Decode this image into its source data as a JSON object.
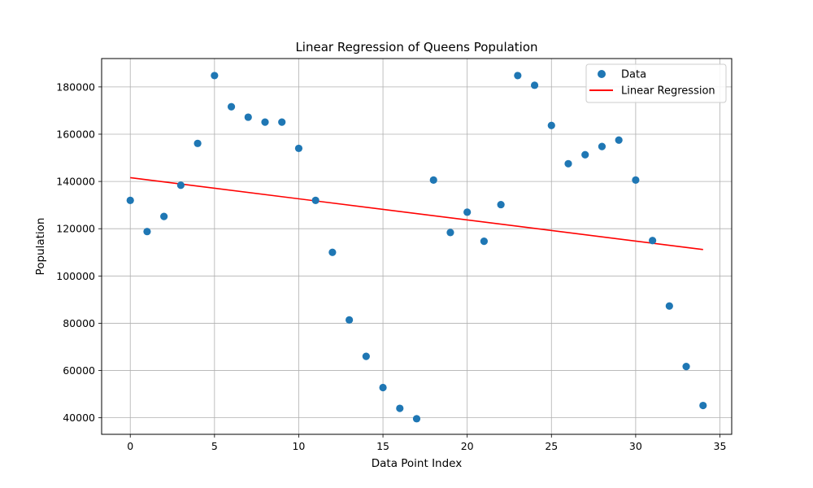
{
  "chart_data": {
    "type": "scatter",
    "title": "Linear Regression of Queens Population",
    "xlabel": "Data Point Index",
    "ylabel": "Population",
    "xlim": [
      -1.7,
      35.7
    ],
    "ylim": [
      33000,
      192000
    ],
    "xticks": [
      0,
      5,
      10,
      15,
      20,
      25,
      30,
      35
    ],
    "yticks": [
      40000,
      60000,
      80000,
      100000,
      120000,
      140000,
      160000,
      180000
    ],
    "grid": true,
    "legend_placement": "top-right",
    "series": [
      {
        "name": "Data",
        "kind": "scatter",
        "color": "#1f77b4",
        "x": [
          0,
          1,
          2,
          3,
          4,
          5,
          6,
          7,
          8,
          9,
          10,
          11,
          12,
          13,
          14,
          15,
          16,
          17,
          18,
          19,
          20,
          21,
          22,
          23,
          24,
          25,
          26,
          27,
          28,
          29,
          30,
          31,
          32,
          33,
          34
        ],
        "y": [
          132000,
          118800,
          125200,
          138400,
          156100,
          184800,
          171600,
          167200,
          165100,
          165100,
          154000,
          132000,
          110000,
          81400,
          66000,
          52800,
          44000,
          39600,
          140600,
          118400,
          127000,
          114700,
          130200,
          184800,
          180700,
          163700,
          147500,
          151300,
          154800,
          157500,
          140600,
          115000,
          87300,
          61700,
          45200
        ]
      },
      {
        "name": "Linear Regression",
        "kind": "line",
        "color": "#ff0000",
        "x": [
          0,
          34
        ],
        "y": [
          141600,
          111200
        ]
      }
    ]
  }
}
